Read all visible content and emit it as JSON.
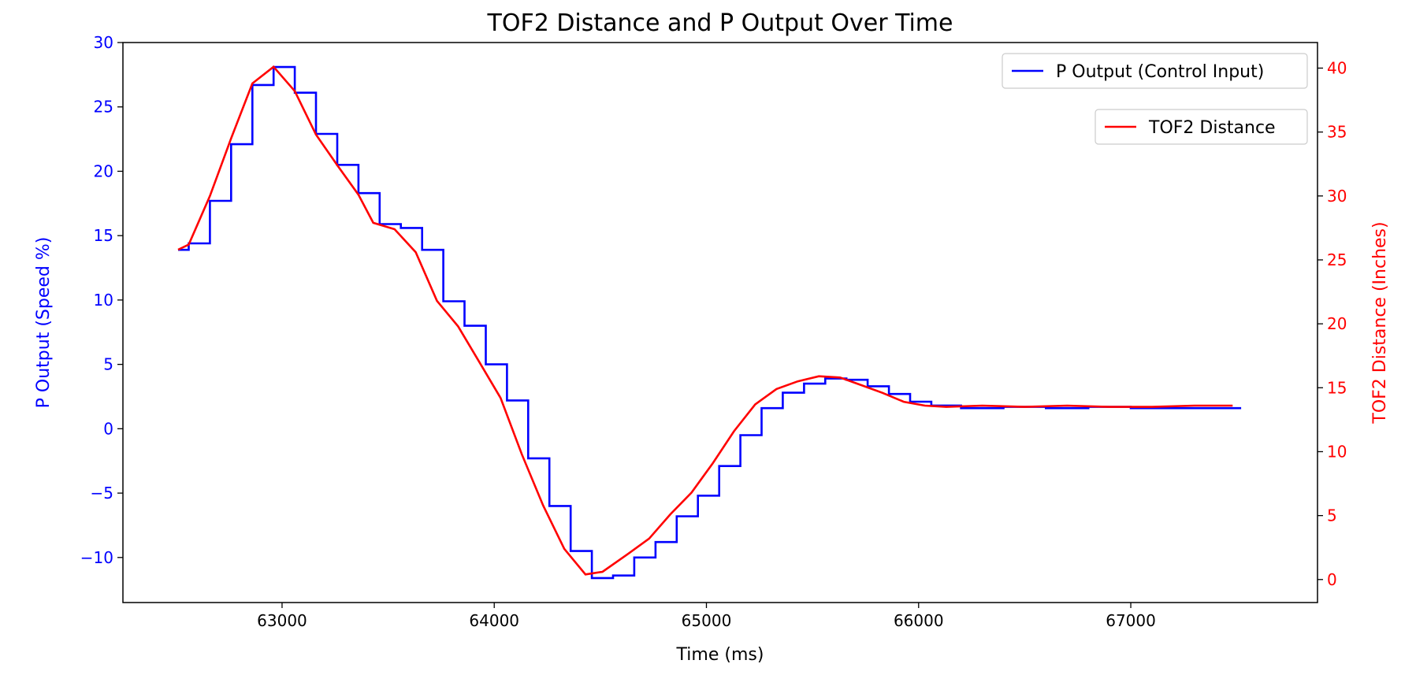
{
  "chart_data": {
    "type": "line",
    "title": "TOF2 Distance and P Output Over Time",
    "xlabel": "Time (ms)",
    "ylabel_left": "P Output (Speed %)",
    "ylabel_right": "TOF2 Distance (Inches)",
    "xlim": [
      62250,
      67880
    ],
    "ylim_left": [
      -13.5,
      30
    ],
    "ylim_right": [
      -1.8,
      42
    ],
    "x_ticks": [
      63000,
      64000,
      65000,
      66000,
      67000
    ],
    "y_left_ticks": [
      -10,
      -5,
      0,
      5,
      10,
      15,
      20,
      25,
      30
    ],
    "y_left_tick_labels": [
      "−10",
      "−5",
      "0",
      "5",
      "10",
      "15",
      "20",
      "25",
      "30"
    ],
    "y_right_ticks": [
      0,
      5,
      10,
      15,
      20,
      25,
      30,
      35,
      40
    ],
    "grid": false,
    "legend_placement": "top-right",
    "colors": {
      "left_axis": "#0000ff",
      "right_axis": "#ff0000"
    },
    "series": [
      {
        "name": "P Output (Control Input)",
        "axis": "left",
        "step": true,
        "color": "#0000ff",
        "x": [
          62510,
          62560,
          62660,
          62760,
          62860,
          62960,
          63060,
          63160,
          63260,
          63360,
          63460,
          63560,
          63660,
          63760,
          63860,
          63960,
          64060,
          64160,
          64260,
          64360,
          64460,
          64560,
          64660,
          64760,
          64860,
          64960,
          65060,
          65160,
          65260,
          65360,
          65460,
          65560,
          65660,
          65760,
          65860,
          65960,
          66060,
          66200,
          66400,
          66600,
          66800,
          67000,
          67200,
          67400,
          67520
        ],
        "y": [
          13.9,
          14.4,
          17.7,
          22.1,
          26.7,
          28.1,
          26.1,
          22.9,
          20.5,
          18.3,
          15.9,
          15.6,
          13.9,
          9.9,
          8.0,
          5.0,
          2.2,
          -2.3,
          -6.0,
          -9.5,
          -11.6,
          -11.4,
          -10.0,
          -8.8,
          -6.8,
          -5.2,
          -2.9,
          -0.5,
          1.6,
          2.8,
          3.5,
          3.9,
          3.8,
          3.3,
          2.7,
          2.1,
          1.8,
          1.6,
          1.7,
          1.6,
          1.7,
          1.6,
          1.6,
          1.6,
          1.6
        ]
      },
      {
        "name": "TOF2 Distance",
        "axis": "right",
        "step": false,
        "color": "#ff0000",
        "x": [
          62510,
          62560,
          62660,
          62760,
          62860,
          62960,
          63060,
          63160,
          63260,
          63360,
          63430,
          63530,
          63630,
          63730,
          63830,
          63930,
          64030,
          64130,
          64230,
          64330,
          64430,
          64510,
          64630,
          64730,
          64830,
          64930,
          65030,
          65130,
          65230,
          65330,
          65430,
          65530,
          65630,
          65730,
          65830,
          65930,
          66030,
          66130,
          66300,
          66500,
          66700,
          66900,
          67100,
          67300,
          67480
        ],
        "y": [
          25.8,
          26.2,
          30.0,
          34.5,
          38.8,
          40.1,
          38.2,
          34.8,
          32.4,
          30.1,
          27.9,
          27.4,
          25.6,
          21.8,
          19.8,
          17.0,
          14.2,
          9.8,
          5.8,
          2.4,
          0.4,
          0.6,
          2.0,
          3.2,
          5.1,
          6.8,
          9.1,
          11.6,
          13.7,
          14.9,
          15.5,
          15.9,
          15.8,
          15.2,
          14.6,
          13.9,
          13.6,
          13.5,
          13.6,
          13.5,
          13.6,
          13.5,
          13.5,
          13.6,
          13.6
        ]
      }
    ]
  }
}
